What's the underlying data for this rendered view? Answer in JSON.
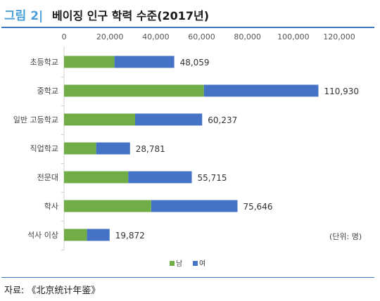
{
  "header": {
    "figure_label": "그림 2|",
    "title": "베이징 인구 학력 수준(2017년)"
  },
  "footer": {
    "source": "자료: 《北京统计年鉴》"
  },
  "chart_data": {
    "type": "bar",
    "orientation": "horizontal",
    "stacked": true,
    "title": "베이징 인구 학력 수준(2017년)",
    "categories": [
      "초등학교",
      "중학교",
      "일반 고등학교",
      "직업학교",
      "전문대",
      "학사",
      "석사 이상"
    ],
    "series": [
      {
        "name": "남",
        "color": "#70ad47",
        "values": [
          22000,
          61000,
          31000,
          14000,
          28000,
          38000,
          10000
        ]
      },
      {
        "name": "여",
        "color": "#4472c4",
        "values": [
          26059,
          49930,
          29237,
          14781,
          27715,
          37646,
          9872
        ]
      }
    ],
    "totals": [
      "48,059",
      "110,930",
      "60,237",
      "28,781",
      "55,715",
      "75,646",
      "19,872"
    ],
    "x_ticks": [
      "0",
      "20,000",
      "40,000",
      "60,000",
      "80,000",
      "100,000",
      "120,000"
    ],
    "xlim": [
      0,
      120000
    ],
    "axis_position": "top",
    "legend_position": "bottom",
    "unit_note": "(단위: 명)",
    "grid": false
  }
}
